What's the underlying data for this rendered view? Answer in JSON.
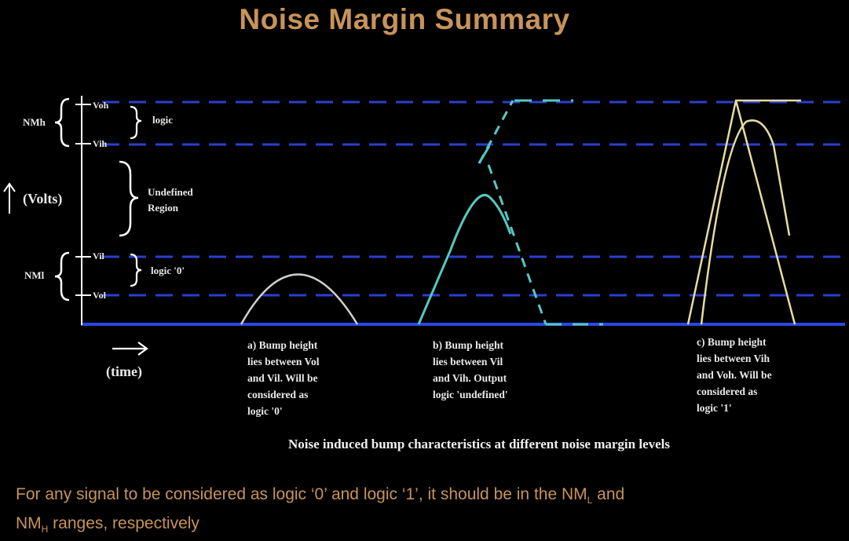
{
  "title": "Noise Margin Summary",
  "levels": {
    "voh": "Voh",
    "vih": "Vih",
    "vil": "Vil",
    "vol": "Vol"
  },
  "margins": {
    "nmh": "NMh",
    "nml": "NMl"
  },
  "regions": {
    "logic_high": "logic",
    "undefined_line1": "Undefined",
    "undefined_line2": "Region",
    "logic_low": "logic '0'"
  },
  "axes": {
    "y_label": "(Volts)",
    "x_label": "(time)"
  },
  "bump_captions": {
    "a": [
      "a) Bump height",
      "lies between Vol",
      "and Vil. Will be",
      "considered as",
      "logic '0'"
    ],
    "b": [
      "b) Bump height",
      "lies between Vil",
      "and Vih. Output",
      "logic 'undefined'"
    ],
    "c": [
      "c) Bump height",
      "lies between Vih",
      "and Voh. Will be",
      "considered as",
      "logic '1'"
    ]
  },
  "diagram_caption": "Noise induced bump characteristics at different noise margin levels",
  "footnote": {
    "part1": "For any signal to be considered as logic ‘0’ and logic ‘1’, it should be in the NM",
    "sub_l": "L",
    "part2": " and",
    "part3": "NM",
    "sub_h": "H",
    "part4": " ranges, respectively"
  },
  "colors": {
    "title": "#c8935a",
    "dashed_levels": "#2a3fd0",
    "baseline": "#2a48e0",
    "bump_a": "#cfcfcf",
    "bump_b": "#56c8c0",
    "bump_c": "#e6dca0",
    "axis": "#ffffff"
  }
}
